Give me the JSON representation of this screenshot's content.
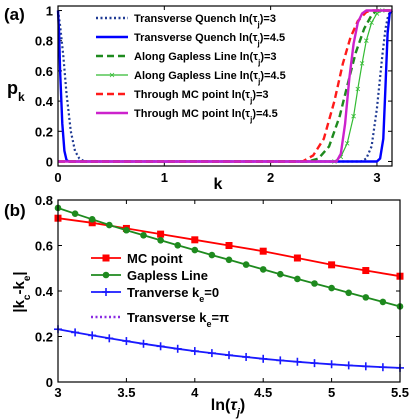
{
  "chart_data": [
    {
      "panel_label": "(a)",
      "type": "line",
      "xlabel": "k",
      "ylabel_main": "p",
      "ylabel_sub": "k",
      "xlim": [
        0,
        3.14159
      ],
      "ylim": [
        -0.03,
        1.03
      ],
      "xticks": [
        0,
        1,
        2,
        3
      ],
      "yticks": [
        0,
        0.2,
        0.4,
        0.6,
        0.8,
        1
      ],
      "grid": false,
      "legend_position": "top-right",
      "series": [
        {
          "name": "Transverse Quench ln(τⱼ)=3",
          "legend_text": "Transverse Quench ln(τ",
          "legend_tail": ")=3",
          "color": "#1f3a93",
          "style": "dotted",
          "marker": "none",
          "x": [
            0,
            0.02,
            0.05,
            0.08,
            0.12,
            0.16,
            0.2,
            0.25,
            0.3,
            2.85,
            2.9,
            2.95,
            3.0,
            3.05,
            3.08,
            3.1,
            3.12,
            3.14159
          ],
          "y": [
            1,
            0.9,
            0.7,
            0.45,
            0.2,
            0.07,
            0.02,
            0,
            0,
            0,
            0.02,
            0.1,
            0.35,
            0.7,
            0.88,
            0.95,
            0.99,
            1
          ]
        },
        {
          "name": "Transverse Quench ln(τⱼ)=4.5",
          "legend_text": "Transverse Quench ln(τ",
          "legend_tail": ")=4.5",
          "color": "#0000ff",
          "style": "solid",
          "marker": "none",
          "x": [
            0,
            0.01,
            0.02,
            0.04,
            0.06,
            0.08,
            0.1,
            0.15,
            3.0,
            3.03,
            3.06,
            3.08,
            3.1,
            3.12,
            3.14159
          ],
          "y": [
            1,
            0.85,
            0.6,
            0.25,
            0.07,
            0.01,
            0,
            0,
            0,
            0.02,
            0.15,
            0.5,
            0.85,
            0.98,
            1
          ]
        },
        {
          "name": "Along Gapless Line ln(τⱼ)=3",
          "legend_text": "Along Gapless Line ln(τ",
          "legend_tail": ")=3",
          "color": "#1e8a1e",
          "style": "dashed",
          "marker": "none",
          "x": [
            0,
            2.35,
            2.45,
            2.55,
            2.65,
            2.72,
            2.8,
            2.88,
            2.95,
            3.0,
            3.14159
          ],
          "y": [
            0,
            0,
            0.02,
            0.1,
            0.3,
            0.5,
            0.72,
            0.88,
            0.97,
            1,
            1
          ]
        },
        {
          "name": "Along Gapless Line ln(τⱼ)=4.5",
          "legend_text": "Along Gapless Line ln(τ",
          "legend_tail": ")=4.5",
          "color": "#33bb33",
          "style": "solid",
          "marker": "x",
          "x": [
            0,
            2.6,
            2.66,
            2.72,
            2.78,
            2.82,
            2.86,
            2.9,
            2.95,
            3.0,
            3.05,
            3.14159
          ],
          "y": [
            0,
            0,
            0.03,
            0.12,
            0.3,
            0.48,
            0.65,
            0.8,
            0.92,
            0.98,
            1,
            1
          ]
        },
        {
          "name": "Through MC point ln(τⱼ)=3",
          "legend_text": "Through MC point ln(τ",
          "legend_tail": ")=3",
          "color": "#ff1a1a",
          "style": "dashed",
          "marker": "none",
          "x": [
            0,
            2.3,
            2.4,
            2.5,
            2.6,
            2.68,
            2.75,
            2.82,
            2.9,
            2.96,
            3.14159
          ],
          "y": [
            0,
            0,
            0.04,
            0.15,
            0.4,
            0.65,
            0.82,
            0.93,
            0.99,
            1,
            1
          ]
        },
        {
          "name": "Through MC point ln(τⱼ)=4.5",
          "legend_text": "Through MC point ln(τ",
          "legend_tail": ")=4.5",
          "color": "#cc22cc",
          "style": "solid",
          "marker": "none",
          "x": [
            0,
            2.62,
            2.66,
            2.7,
            2.74,
            2.78,
            2.82,
            2.86,
            2.9,
            3.14159
          ],
          "y": [
            0,
            0,
            0.05,
            0.25,
            0.55,
            0.78,
            0.92,
            0.98,
            1,
            1
          ]
        }
      ]
    },
    {
      "panel_label": "(b)",
      "type": "line",
      "xlabel": "ln(",
      "xlabel_var": "τ",
      "xlabel_sub": "j",
      "xlabel_tail": ")",
      "ylabel": "|k",
      "ylabel_sub1": "c",
      "ylabel_mid": "-k",
      "ylabel_sub2": "e",
      "ylabel_tail": "|",
      "xlim": [
        3,
        5.5
      ],
      "ylim": [
        0,
        0.8
      ],
      "xticks": [
        3,
        3.5,
        4,
        4.5,
        5,
        5.5
      ],
      "yticks": [
        0,
        0.2,
        0.4,
        0.6,
        0.8
      ],
      "grid": false,
      "legend_position": "top-center",
      "series": [
        {
          "name": "MC point",
          "legend_text": "MC point",
          "color": "#ff0000",
          "style": "solid",
          "marker": "square",
          "x": [
            3.0,
            3.25,
            3.5,
            3.75,
            4.0,
            4.25,
            4.5,
            4.75,
            5.0,
            5.25,
            5.5
          ],
          "y": [
            0.72,
            0.7,
            0.675,
            0.65,
            0.625,
            0.6,
            0.575,
            0.545,
            0.515,
            0.49,
            0.465
          ]
        },
        {
          "name": "Gapless Line",
          "legend_text": "Gapless Line",
          "color": "#1e8a1e",
          "style": "solid",
          "marker": "circle",
          "x": [
            3.0,
            3.125,
            3.25,
            3.375,
            3.5,
            3.625,
            3.75,
            3.875,
            4.0,
            4.125,
            4.25,
            4.375,
            4.5,
            4.625,
            4.75,
            4.875,
            5.0,
            5.125,
            5.25,
            5.375,
            5.5
          ],
          "y": [
            0.765,
            0.74,
            0.715,
            0.69,
            0.667,
            0.645,
            0.623,
            0.601,
            0.58,
            0.558,
            0.537,
            0.516,
            0.495,
            0.474,
            0.453,
            0.433,
            0.413,
            0.392,
            0.372,
            0.352,
            0.332
          ]
        },
        {
          "name": "Tranverse kₑ=0",
          "legend_text": "Tranverse k",
          "legend_sub": "e",
          "legend_tail": "=0",
          "color": "#1a1aff",
          "style": "solid",
          "marker": "plus",
          "x": [
            3.0,
            3.125,
            3.25,
            3.375,
            3.5,
            3.625,
            3.75,
            3.875,
            4.0,
            4.125,
            4.25,
            4.375,
            4.5,
            4.625,
            4.75,
            4.875,
            5.0,
            5.125,
            5.25,
            5.375,
            5.5
          ],
          "y": [
            0.232,
            0.218,
            0.205,
            0.192,
            0.18,
            0.168,
            0.157,
            0.146,
            0.136,
            0.127,
            0.118,
            0.11,
            0.102,
            0.095,
            0.089,
            0.083,
            0.078,
            0.073,
            0.069,
            0.065,
            0.062
          ]
        },
        {
          "name": "Transverse kₑ=π",
          "legend_text": "Transverse k",
          "legend_sub": "e",
          "legend_tail": "=π",
          "color": "#8a2be2",
          "style": "dotted",
          "marker": "none",
          "x": [
            3.0,
            3.25,
            3.5,
            3.75,
            4.0,
            4.25,
            4.5,
            4.75,
            5.0,
            5.25,
            5.5
          ],
          "y": [
            0.232,
            0.205,
            0.18,
            0.157,
            0.136,
            0.118,
            0.102,
            0.089,
            0.078,
            0.069,
            0.062
          ]
        }
      ]
    }
  ]
}
